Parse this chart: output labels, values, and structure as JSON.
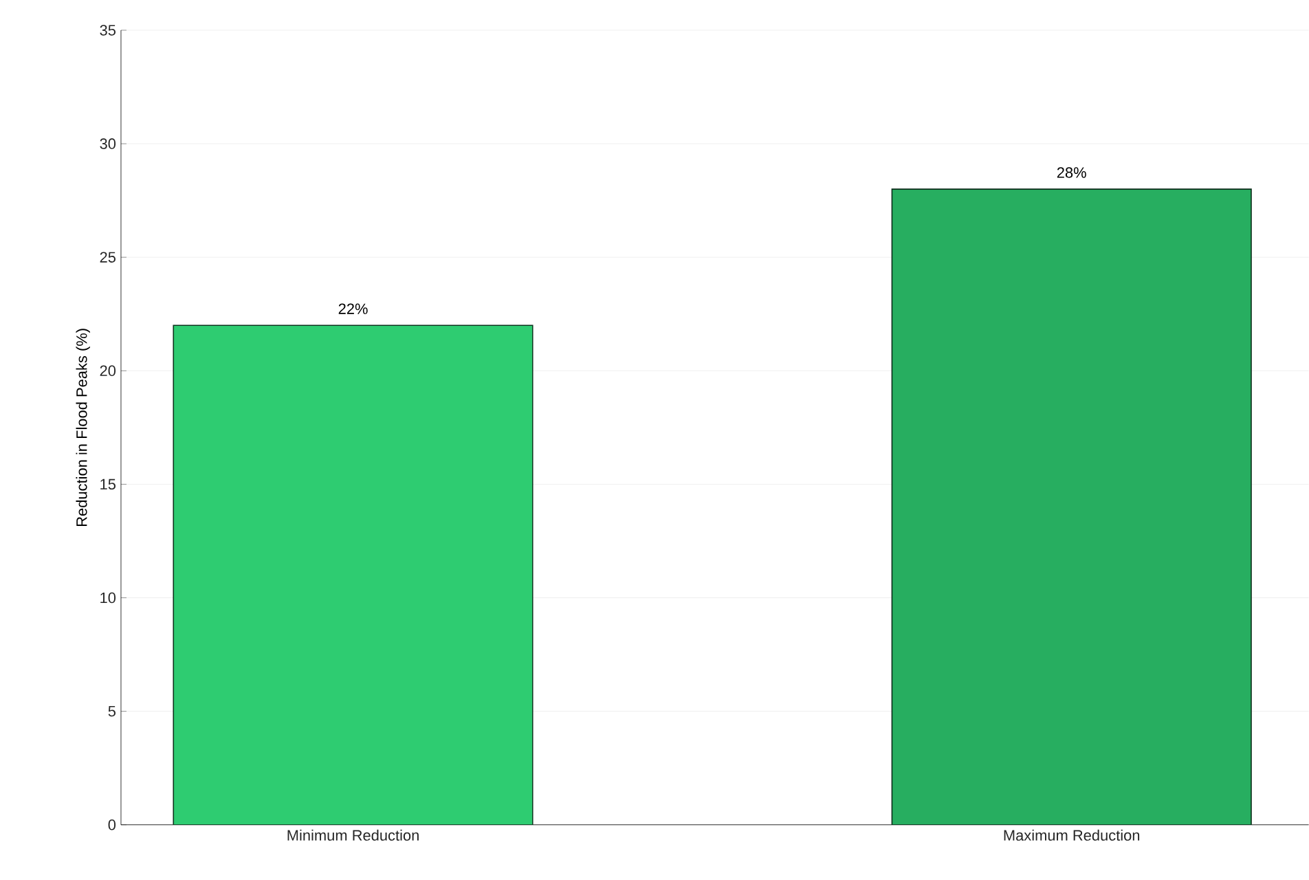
{
  "chart_data": {
    "type": "bar",
    "ylabel": "Reduction in Flood Peaks (%)",
    "categories": [
      "Minimum Reduction",
      "Maximum Reduction"
    ],
    "values": [
      22,
      28
    ],
    "colors": [
      "#2ecc71",
      "#27ae60"
    ],
    "value_labels": [
      "22%",
      "28%"
    ],
    "ylim": [
      0,
      35
    ],
    "yticks": [
      0,
      5,
      10,
      15,
      20,
      25,
      30,
      35
    ],
    "grid": "y"
  }
}
